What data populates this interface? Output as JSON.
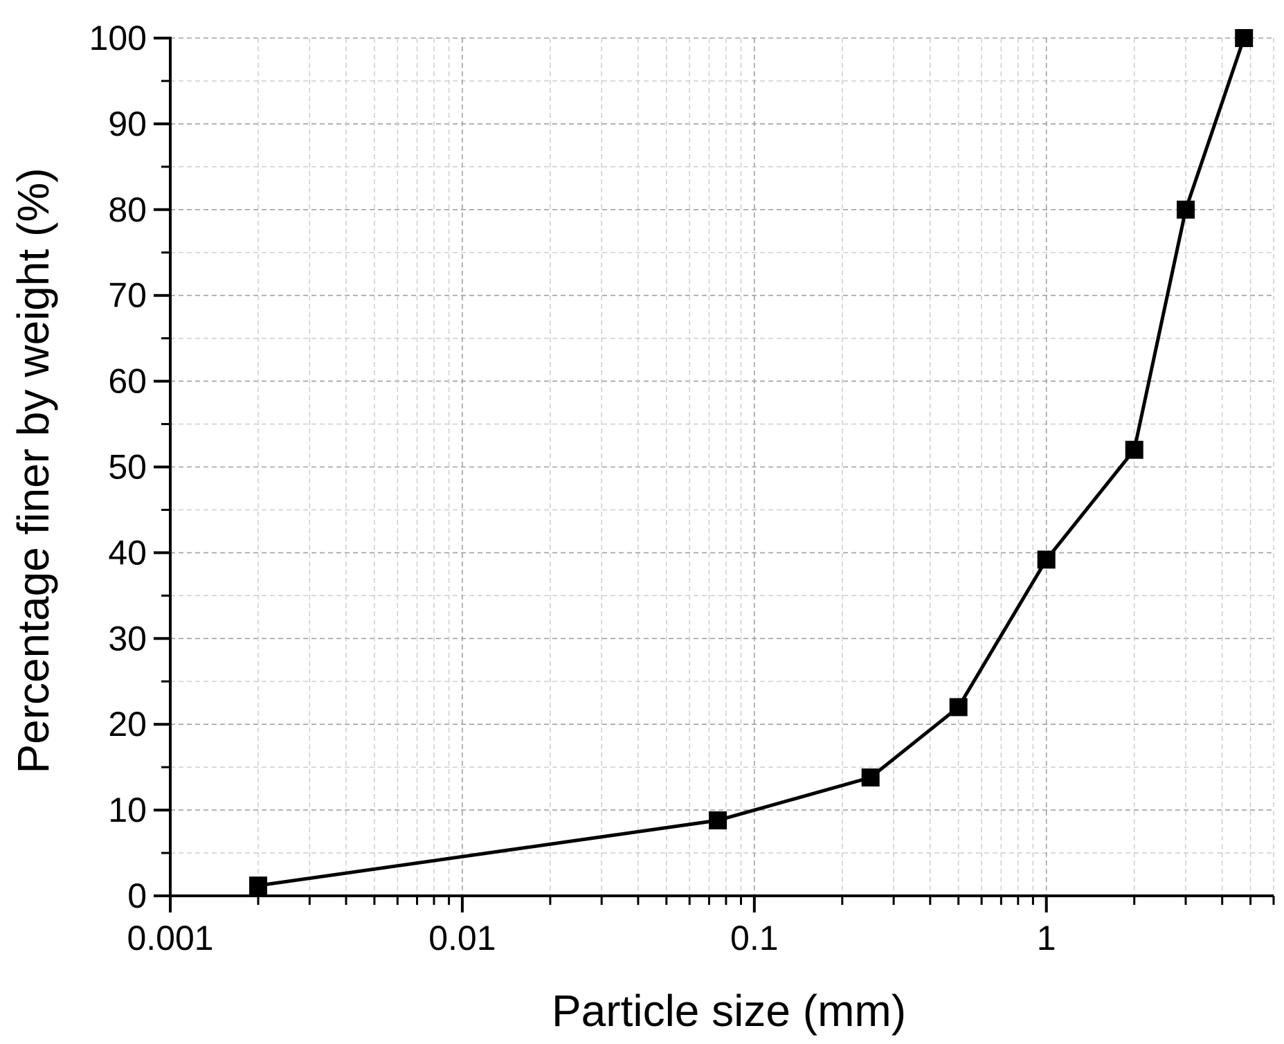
{
  "chart_data": {
    "type": "line",
    "title": "",
    "xlabel": "Particle size (mm)",
    "ylabel": "Percentage finer by weight (%)",
    "x_scale": "log",
    "xlim": [
      0.001,
      6
    ],
    "ylim": [
      0,
      100
    ],
    "grid": true,
    "marker": "square",
    "x_ticks": [
      {
        "value": 0.001,
        "label": "0.001"
      },
      {
        "value": 0.01,
        "label": "0.01"
      },
      {
        "value": 0.1,
        "label": "0.1"
      },
      {
        "value": 1,
        "label": "1"
      }
    ],
    "y_ticks": [
      {
        "value": 0,
        "label": "0"
      },
      {
        "value": 10,
        "label": "10"
      },
      {
        "value": 20,
        "label": "20"
      },
      {
        "value": 30,
        "label": "30"
      },
      {
        "value": 40,
        "label": "40"
      },
      {
        "value": 50,
        "label": "50"
      },
      {
        "value": 60,
        "label": "60"
      },
      {
        "value": 70,
        "label": "70"
      },
      {
        "value": 80,
        "label": "80"
      },
      {
        "value": 90,
        "label": "90"
      },
      {
        "value": 100,
        "label": "100"
      }
    ],
    "series": [
      {
        "x": [
          0.002,
          0.075,
          0.25,
          0.5,
          1,
          2,
          3,
          4.75
        ],
        "y": [
          1.2,
          8.8,
          13.8,
          22,
          39.2,
          52,
          80,
          100
        ]
      }
    ],
    "colors": {
      "line": "#000000",
      "marker": "#000000",
      "grid_major": "#a0a0a0",
      "grid_minor": "#d0d0d0"
    }
  }
}
